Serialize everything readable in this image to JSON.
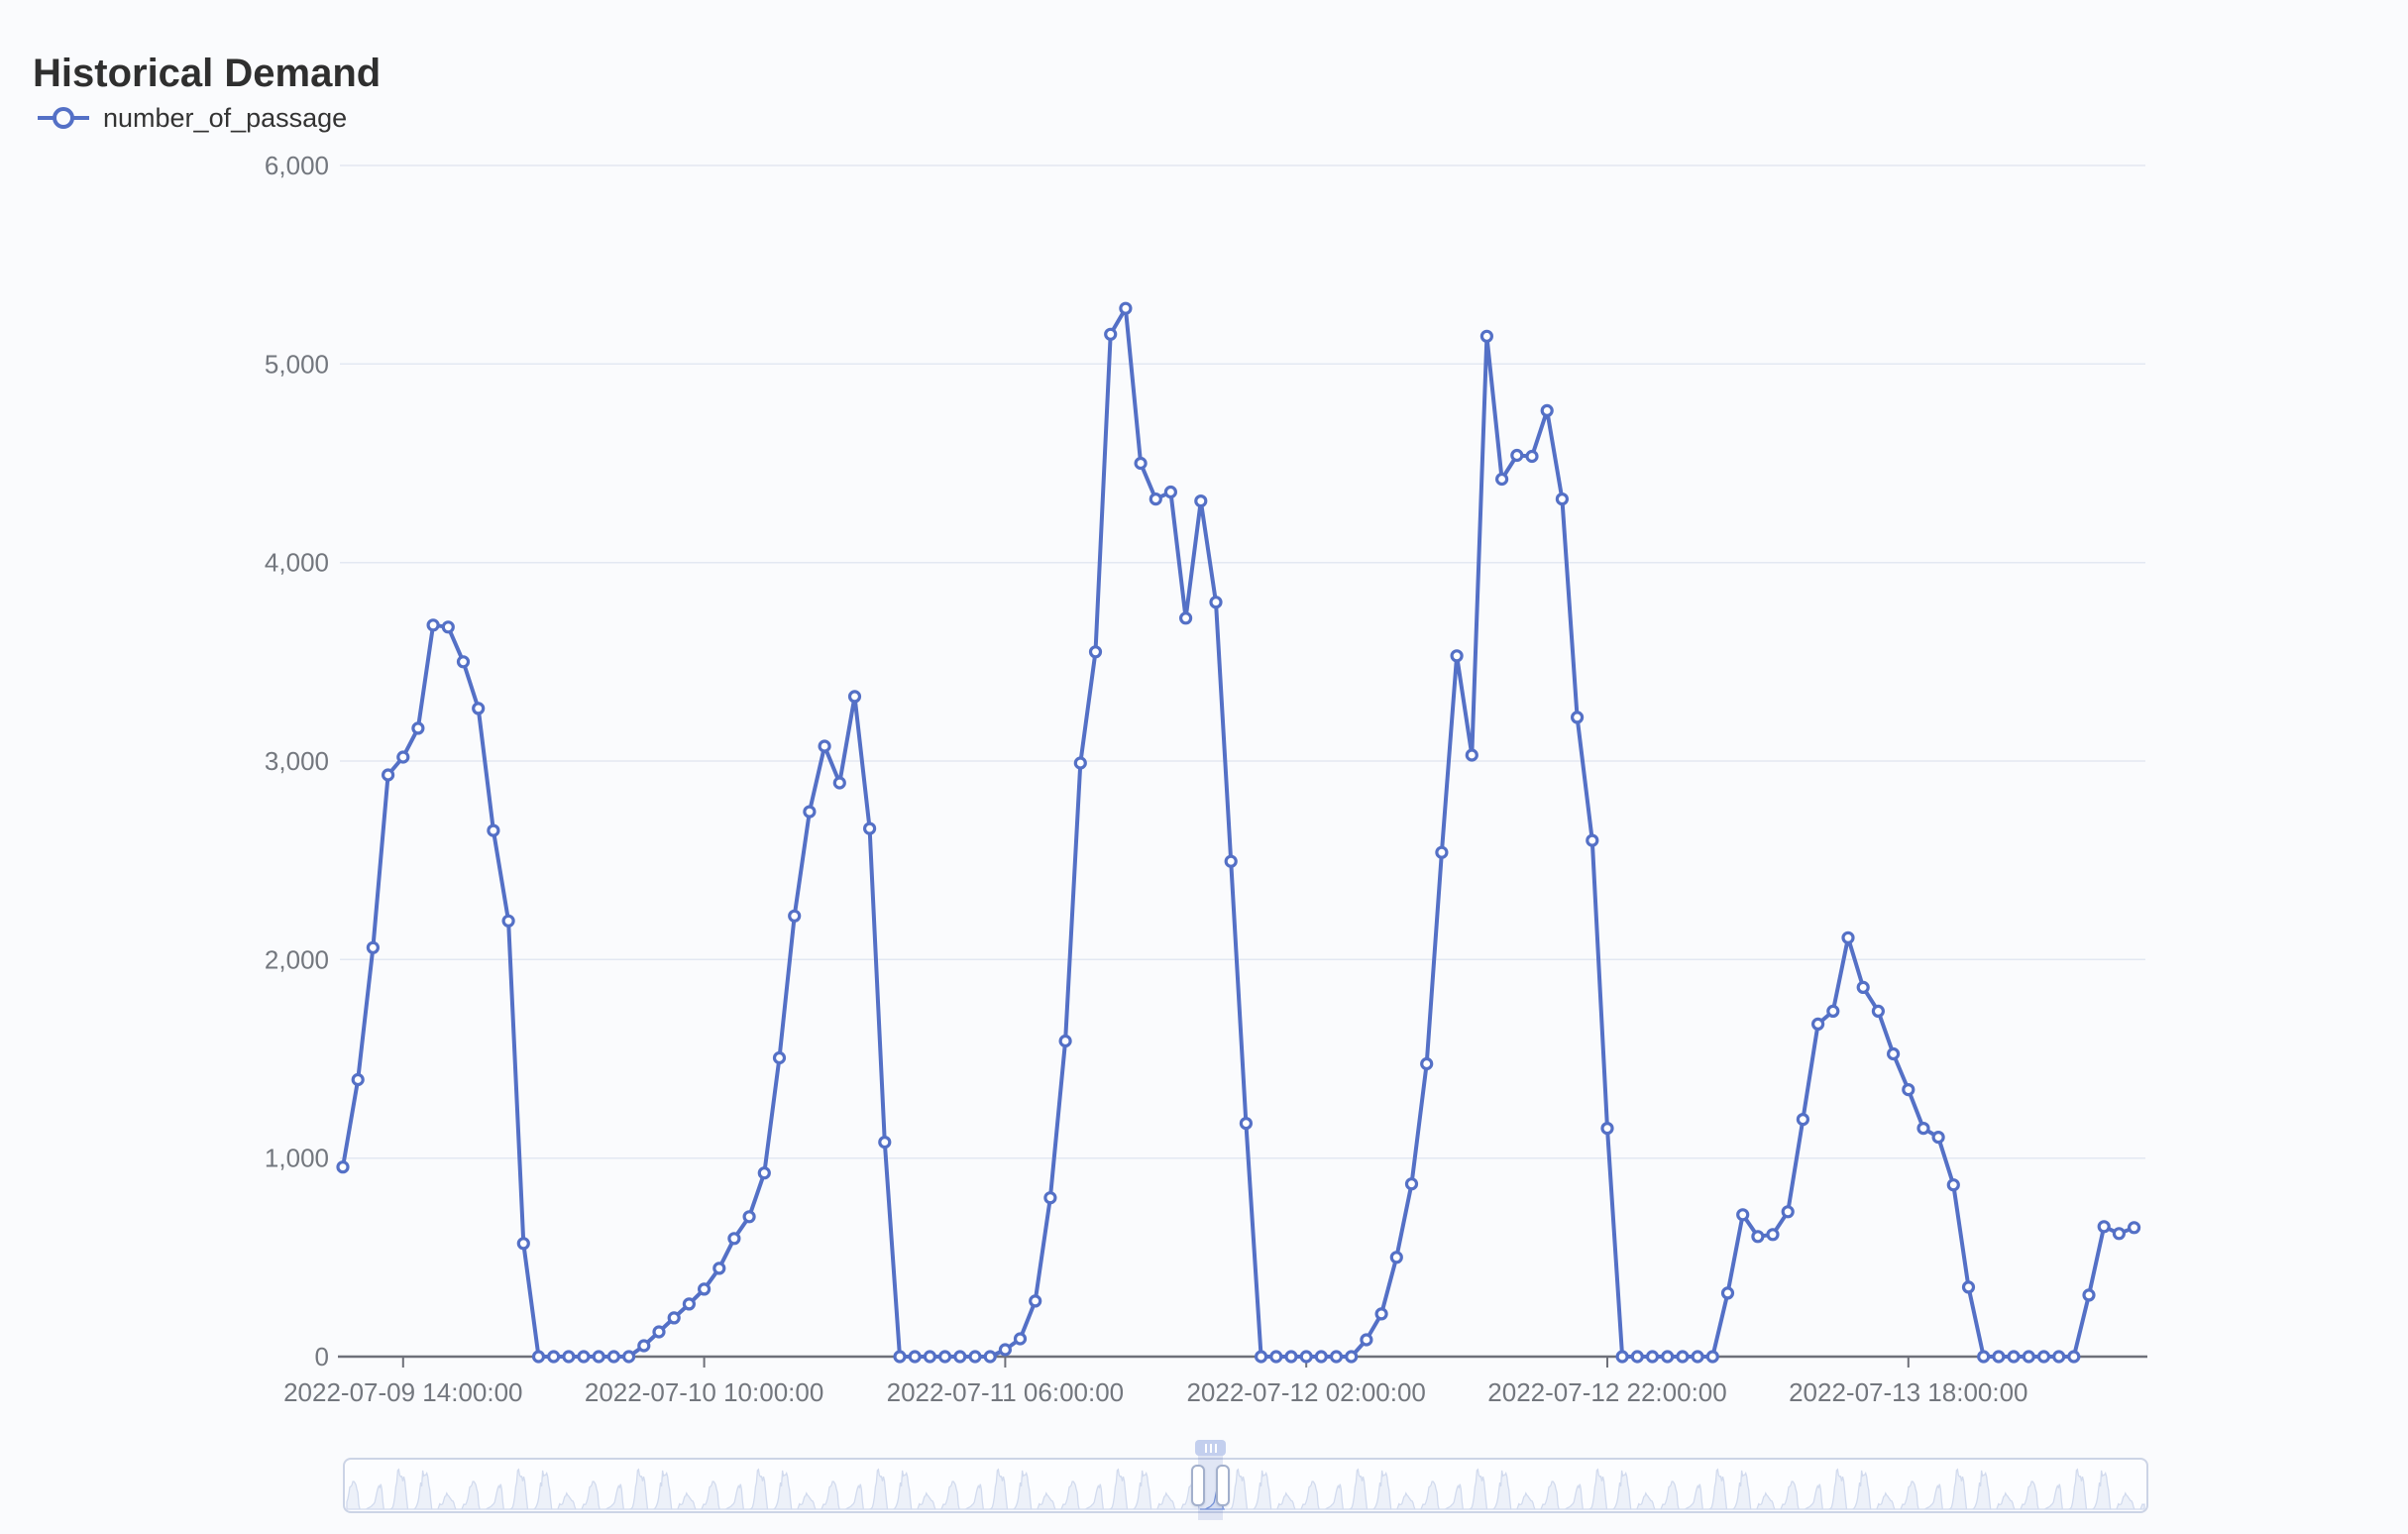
{
  "header": {
    "title": "Historical Demand"
  },
  "legend": {
    "items": [
      {
        "label": "number_of_passage",
        "color": "#5470c6",
        "icon": "line-with-hollow-circle"
      }
    ]
  },
  "chart_data": {
    "type": "line",
    "title": "Historical Demand",
    "legend_position": "top-left",
    "grid": true,
    "x": {
      "type": "time",
      "start_time": "2022-07-09 10:00:00",
      "end_time": "2022-07-14 09:00:00",
      "interval_hours": 1,
      "tick_indices": [
        4,
        24,
        44,
        64,
        84,
        104
      ],
      "tick_labels": [
        "2022-07-09 14:00:00",
        "2022-07-10 10:00:00",
        "2022-07-11 06:00:00",
        "2022-07-12 02:00:00",
        "2022-07-12 22:00:00",
        "2022-07-13 18:00:00"
      ]
    },
    "y": {
      "min": 0,
      "max": 6000,
      "tick_step": 1000,
      "tick_labels": [
        "0",
        "1,000",
        "2,000",
        "3,000",
        "4,000",
        "5,000",
        "6,000"
      ]
    },
    "series": [
      {
        "name": "number_of_passage",
        "color": "#5470c6",
        "symbol": "hollow-circle",
        "values": [
          955,
          1395,
          2060,
          2930,
          3020,
          3165,
          3685,
          3675,
          3500,
          3265,
          2650,
          2195,
          570,
          0,
          0,
          0,
          0,
          0,
          0,
          0,
          55,
          125,
          195,
          265,
          340,
          445,
          595,
          705,
          925,
          1505,
          2220,
          2745,
          3075,
          2890,
          3325,
          2660,
          1080,
          0,
          0,
          0,
          0,
          0,
          0,
          0,
          35,
          90,
          280,
          800,
          1590,
          2990,
          3550,
          5150,
          5280,
          4500,
          4320,
          4355,
          3720,
          4310,
          3800,
          2495,
          1175,
          0,
          0,
          0,
          0,
          0,
          0,
          0,
          85,
          215,
          500,
          870,
          1475,
          2540,
          3530,
          3030,
          5140,
          4420,
          4540,
          4535,
          4765,
          4320,
          3220,
          2600,
          1150,
          0,
          0,
          0,
          0,
          0,
          0,
          0,
          320,
          715,
          605,
          615,
          730,
          1195,
          1675,
          1740,
          2110,
          1860,
          1740,
          1525,
          1345,
          1150,
          1105,
          865,
          350,
          0,
          0,
          0,
          0,
          0,
          0,
          0,
          310,
          655,
          620,
          650
        ]
      }
    ]
  },
  "datazoom": {
    "window_start_pct": 47.4,
    "window_width_pct": 1.4,
    "handle_count": 2
  },
  "colors": {
    "background": "#fafbfd",
    "line": "#5470c6",
    "marker_fill": "#ffffff",
    "grid_line": "#e3e8f2",
    "axis_line": "#6e7079",
    "axis_label": "#73777e",
    "title_text": "#2f2f2f",
    "legend_text": "#333333",
    "slider_border": "#ccd4e6",
    "slider_bg": "#fcfdff",
    "shadow_line": "#d2dbee",
    "shadow_fill": "rgba(210,219,238,0.35)",
    "window_fill": "rgba(98,126,202,0.18)",
    "window_line": "#7d99dc",
    "handle_border": "#a3b0cc",
    "move_tab": "#c3cfee"
  }
}
